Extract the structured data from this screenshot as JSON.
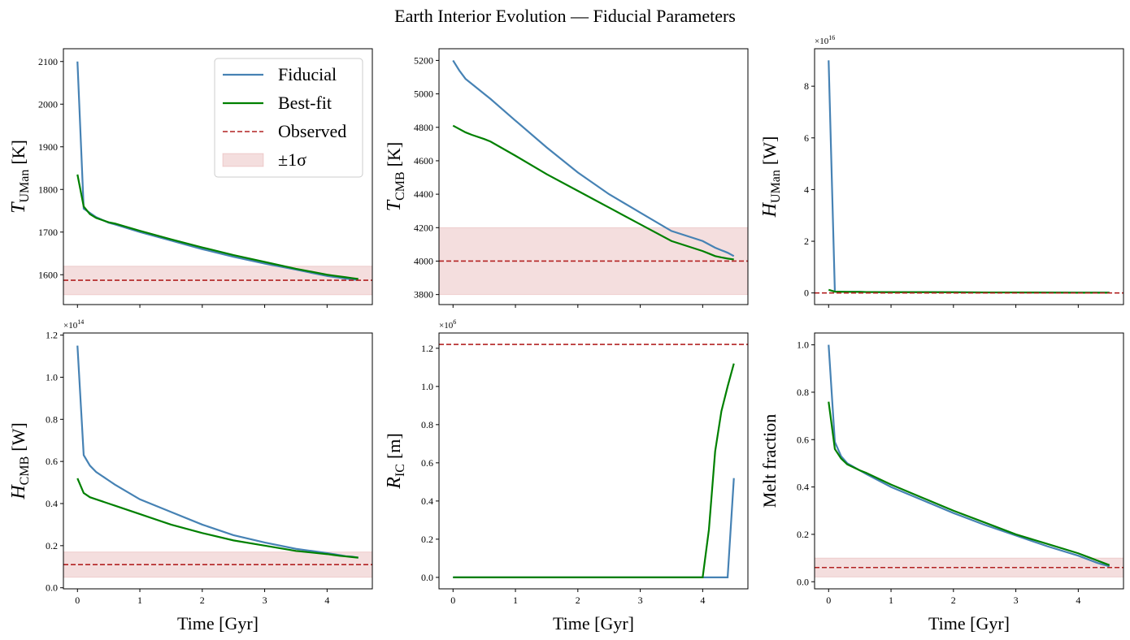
{
  "title": "Earth Interior Evolution — Fiducial Parameters",
  "chart_data": [
    {
      "type": "line",
      "ylabel": {
        "symbol": "T",
        "subscript": "UMan",
        "unit": "[K]"
      },
      "x": [
        0,
        0.1,
        0.2,
        0.3,
        0.5,
        0.6,
        1,
        1.5,
        2,
        2.5,
        3,
        3.5,
        4,
        4.1,
        4.2,
        4.3,
        4.4,
        4.5
      ],
      "xlim": [
        -0.225,
        4.725
      ],
      "xticks": [
        0,
        1,
        2,
        3,
        4
      ],
      "show_xticklabels": false,
      "ylim": [
        1530,
        2130
      ],
      "yticks": [
        1600,
        1700,
        1800,
        1900,
        2000,
        2100
      ],
      "series": [
        {
          "name": "Fiducial",
          "color": "#4682b4",
          "values": [
            2100,
            1755,
            1745,
            1735,
            1722,
            1718,
            1700,
            1680,
            1660,
            1642,
            1626,
            1612,
            1597,
            1595,
            1593,
            1591,
            1589,
            1588
          ]
        },
        {
          "name": "Best-fit",
          "color": "#008000",
          "values": [
            1835,
            1760,
            1742,
            1733,
            1723,
            1720,
            1703,
            1683,
            1664,
            1646,
            1630,
            1614,
            1600,
            1598,
            1596,
            1594,
            1592,
            1590
          ]
        }
      ],
      "reference": {
        "name": "Observed",
        "value": 1587,
        "color": "#b22222"
      },
      "band": {
        "name": "±1σ",
        "range": [
          1553,
          1620
        ]
      },
      "legend": "upper right"
    },
    {
      "type": "line",
      "ylabel": {
        "symbol": "T",
        "subscript": "CMB",
        "unit": "[K]"
      },
      "x": [
        0,
        0.1,
        0.2,
        0.3,
        0.5,
        0.6,
        1,
        1.5,
        2,
        2.5,
        3,
        3.5,
        4,
        4.1,
        4.2,
        4.3,
        4.4,
        4.5
      ],
      "xlim": [
        -0.225,
        4.725
      ],
      "xticks": [
        0,
        1,
        2,
        3,
        4
      ],
      "show_xticklabels": false,
      "ylim": [
        3740,
        5270
      ],
      "yticks": [
        3800,
        4000,
        4200,
        4400,
        4600,
        4800,
        5000,
        5200
      ],
      "series": [
        {
          "color": "#4682b4",
          "values": [
            5200,
            5140,
            5090,
            5060,
            5000,
            4970,
            4840,
            4680,
            4530,
            4400,
            4290,
            4180,
            4120,
            4100,
            4080,
            4065,
            4050,
            4030
          ]
        },
        {
          "color": "#008000",
          "values": [
            4810,
            4790,
            4770,
            4755,
            4730,
            4715,
            4630,
            4520,
            4420,
            4320,
            4220,
            4120,
            4060,
            4045,
            4030,
            4022,
            4015,
            4010
          ]
        }
      ],
      "reference": {
        "value": 4000,
        "color": "#b22222"
      },
      "band": {
        "range": [
          3800,
          4200
        ]
      }
    },
    {
      "type": "line",
      "ylabel": {
        "symbol": "H",
        "subscript": "UMan",
        "unit": "[W]"
      },
      "offset": {
        "base": "×10",
        "exponent": "16"
      },
      "x": [
        0,
        0.1,
        0.2,
        0.3,
        0.5,
        0.6,
        1,
        1.5,
        2,
        2.5,
        3,
        3.5,
        4,
        4.1,
        4.2,
        4.3,
        4.4,
        4.5
      ],
      "xlim": [
        -0.225,
        4.725
      ],
      "xticks": [
        0,
        1,
        2,
        3,
        4
      ],
      "show_xticklabels": false,
      "ylim": [
        -0.45,
        9.45
      ],
      "yticks": [
        0,
        2,
        4,
        6,
        8
      ],
      "series": [
        {
          "color": "#4682b4",
          "values": [
            9,
            0.05,
            0.045,
            0.04,
            0.04,
            0.035,
            0.03,
            0.03,
            0.025,
            0.02,
            0.02,
            0.015,
            0.01,
            0.01,
            0.01,
            0.01,
            0.01,
            0.01
          ]
        },
        {
          "color": "#008000",
          "values": [
            0.12,
            0.05,
            0.045,
            0.04,
            0.04,
            0.035,
            0.03,
            0.03,
            0.025,
            0.02,
            0.02,
            0.015,
            0.01,
            0.01,
            0.01,
            0.01,
            0.01,
            0.01
          ]
        }
      ],
      "reference": {
        "value": 0,
        "color": "#b22222"
      }
    },
    {
      "type": "line",
      "ylabel": {
        "symbol": "H",
        "subscript": "CMB",
        "unit": "[W]"
      },
      "offset": {
        "base": "×10",
        "exponent": "14"
      },
      "x": [
        0,
        0.1,
        0.2,
        0.3,
        0.5,
        0.6,
        1,
        1.5,
        2,
        2.5,
        3,
        3.5,
        4,
        4.1,
        4.2,
        4.3,
        4.4,
        4.5
      ],
      "xlim": [
        -0.225,
        4.725
      ],
      "xticks": [
        0,
        1,
        2,
        3,
        4
      ],
      "xlabel": "Time [Gyr]",
      "ylim": [
        -0.005,
        1.21
      ],
      "yticks": [
        {
          "value": 0,
          "label": "0.0"
        },
        0.2,
        0.4,
        0.6,
        0.8,
        {
          "value": 1,
          "label": "1.0"
        },
        1.2
      ],
      "series": [
        {
          "color": "#4682b4",
          "values": [
            1.15,
            0.63,
            0.58,
            0.55,
            0.51,
            0.49,
            0.42,
            0.36,
            0.3,
            0.25,
            0.215,
            0.185,
            0.165,
            0.16,
            0.155,
            0.15,
            0.148,
            0.143
          ]
        },
        {
          "color": "#008000",
          "values": [
            0.52,
            0.45,
            0.43,
            0.42,
            0.4,
            0.39,
            0.35,
            0.3,
            0.26,
            0.225,
            0.2,
            0.175,
            0.16,
            0.156,
            0.152,
            0.149,
            0.146,
            0.143
          ]
        }
      ],
      "reference": {
        "value": 0.11,
        "color": "#b22222"
      },
      "band": {
        "range": [
          0.05,
          0.17
        ]
      }
    },
    {
      "type": "line",
      "ylabel": {
        "symbol": "R",
        "subscript": "IC",
        "unit": "[m]"
      },
      "offset": {
        "base": "×10",
        "exponent": "6"
      },
      "x": [
        0,
        0.1,
        0.2,
        0.3,
        0.5,
        0.6,
        1,
        1.5,
        2,
        2.5,
        3,
        3.5,
        4,
        4.1,
        4.2,
        4.3,
        4.4,
        4.5
      ],
      "xlim": [
        -0.225,
        4.725
      ],
      "xticks": [
        0,
        1,
        2,
        3,
        4
      ],
      "xlabel": "Time [Gyr]",
      "ylim": [
        -0.06,
        1.28
      ],
      "yticks": [
        {
          "value": 0,
          "label": "0.0"
        },
        0.2,
        0.4,
        0.6,
        0.8,
        {
          "value": 1,
          "label": "1.0"
        },
        1.2
      ],
      "series": [
        {
          "color": "#4682b4",
          "values": [
            0,
            0,
            0,
            0,
            0,
            0,
            0,
            0,
            0,
            0,
            0,
            0,
            0,
            0,
            0,
            0,
            0,
            0.52
          ]
        },
        {
          "color": "#008000",
          "values": [
            0,
            0,
            0,
            0,
            0,
            0,
            0,
            0,
            0,
            0,
            0,
            0,
            0,
            0.25,
            0.66,
            0.87,
            1,
            1.12
          ]
        }
      ],
      "reference": {
        "value": 1.22,
        "color": "#b22222"
      }
    },
    {
      "type": "line",
      "ylabel": "Melt fraction",
      "x": [
        0,
        0.1,
        0.2,
        0.3,
        0.5,
        0.6,
        1,
        1.5,
        2,
        2.5,
        3,
        3.5,
        4,
        4.1,
        4.2,
        4.3,
        4.4,
        4.5
      ],
      "xlim": [
        -0.225,
        4.725
      ],
      "xticks": [
        0,
        1,
        2,
        3,
        4
      ],
      "xlabel": "Time [Gyr]",
      "ylim": [
        -0.03,
        1.05
      ],
      "yticks": [
        {
          "value": 0,
          "label": "0.0"
        },
        0.2,
        0.4,
        0.6,
        0.8,
        {
          "value": 1,
          "label": "1.0"
        }
      ],
      "series": [
        {
          "color": "#4682b4",
          "values": [
            1,
            0.59,
            0.53,
            0.5,
            0.47,
            0.455,
            0.4,
            0.345,
            0.29,
            0.24,
            0.195,
            0.15,
            0.11,
            0.1,
            0.09,
            0.08,
            0.072,
            0.065
          ]
        },
        {
          "color": "#008000",
          "values": [
            0.76,
            0.56,
            0.52,
            0.495,
            0.47,
            0.46,
            0.41,
            0.355,
            0.3,
            0.25,
            0.2,
            0.16,
            0.12,
            0.11,
            0.1,
            0.09,
            0.08,
            0.07
          ]
        }
      ],
      "reference": {
        "value": 0.06,
        "color": "#b22222"
      },
      "band": {
        "range": [
          0.02,
          0.1
        ]
      }
    }
  ]
}
